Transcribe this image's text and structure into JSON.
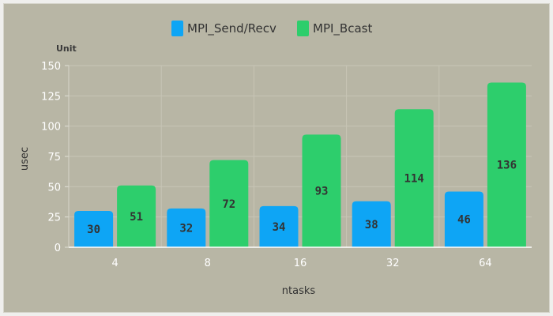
{
  "chart_data": {
    "type": "bar",
    "categories": [
      "4",
      "8",
      "16",
      "32",
      "64"
    ],
    "series": [
      {
        "name": "MPI_Send/Recv",
        "color": "#0ea5f5",
        "values": [
          30,
          32,
          34,
          38,
          46
        ]
      },
      {
        "name": "MPI_Bcast",
        "color": "#2dce6c",
        "values": [
          51,
          72,
          93,
          114,
          136
        ]
      }
    ],
    "xlabel": "ntasks",
    "ylabel": "usec",
    "unit_label": "Unit",
    "ylim": [
      0,
      150
    ],
    "yticks": [
      0,
      25,
      50,
      75,
      100,
      125,
      150
    ],
    "grid": true,
    "legend_position": "top-center",
    "data_labels": true
  }
}
